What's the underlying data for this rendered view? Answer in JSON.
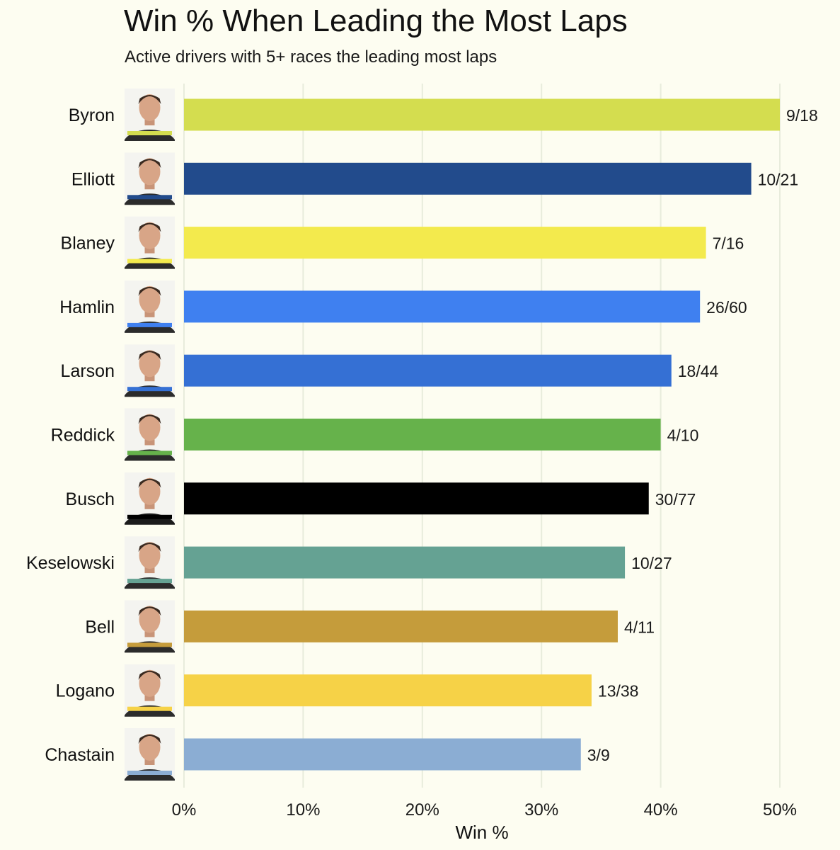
{
  "chart_data": {
    "type": "bar",
    "orientation": "horizontal",
    "title": "Win % When Leading the Most Laps",
    "subtitle": "Active drivers with 5+ races the leading most laps",
    "xlabel": "Win %",
    "ylabel": "",
    "xlim": [
      0,
      50
    ],
    "x_ticks": [
      "0%",
      "10%",
      "20%",
      "30%",
      "40%",
      "50%"
    ],
    "grid": "vertical",
    "legend": "none",
    "categories": [
      "Byron",
      "Elliott",
      "Blaney",
      "Hamlin",
      "Larson",
      "Reddick",
      "Busch",
      "Keselowski",
      "Bell",
      "Logano",
      "Chastain"
    ],
    "values": [
      50.0,
      47.6,
      43.8,
      43.3,
      40.9,
      40.0,
      39.0,
      37.0,
      36.4,
      34.2,
      33.3
    ],
    "labels": [
      "9/18",
      "10/21",
      "7/16",
      "26/60",
      "18/44",
      "4/10",
      "30/77",
      "10/27",
      "4/11",
      "13/38",
      "3/9"
    ],
    "colors": [
      "#d4dd4f",
      "#224b8c",
      "#f3ea4d",
      "#3f80f0",
      "#3570d4",
      "#66b24b",
      "#000000",
      "#65a293",
      "#c59c3b",
      "#f6d247",
      "#8badd3"
    ],
    "icons": [
      "driver-photo",
      "driver-photo",
      "driver-photo",
      "driver-photo",
      "driver-photo",
      "driver-photo",
      "driver-photo",
      "driver-photo",
      "driver-photo",
      "driver-photo",
      "driver-photo"
    ]
  }
}
